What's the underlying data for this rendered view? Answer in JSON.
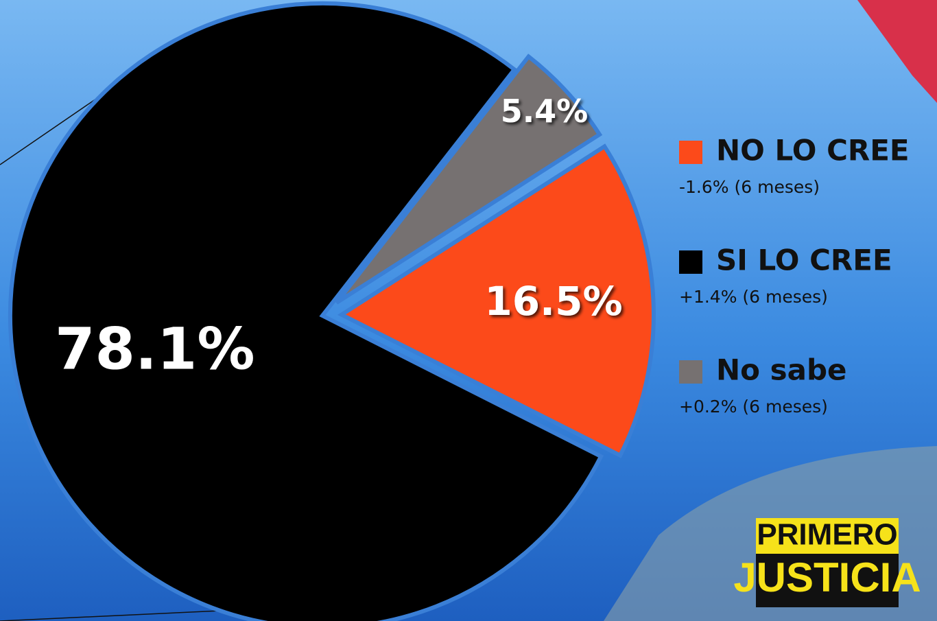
{
  "chart_data": {
    "type": "pie",
    "categories": [
      "NO LO CREE",
      "SI LO CREE",
      "No sabe"
    ],
    "values": [
      16.5,
      78.1,
      5.4
    ],
    "value_labels": [
      "16.5%",
      "78.1%",
      "5.4%"
    ],
    "colors": [
      "#fc4a1a",
      "#000000",
      "#767171"
    ],
    "legend_notes": [
      "-1.6% (6 meses)",
      "+1.4% (6 meses)",
      "+0.2% (6 meses)"
    ],
    "legend": "right"
  },
  "logo": [
    "PRIMERO",
    "JUSTICIA"
  ]
}
